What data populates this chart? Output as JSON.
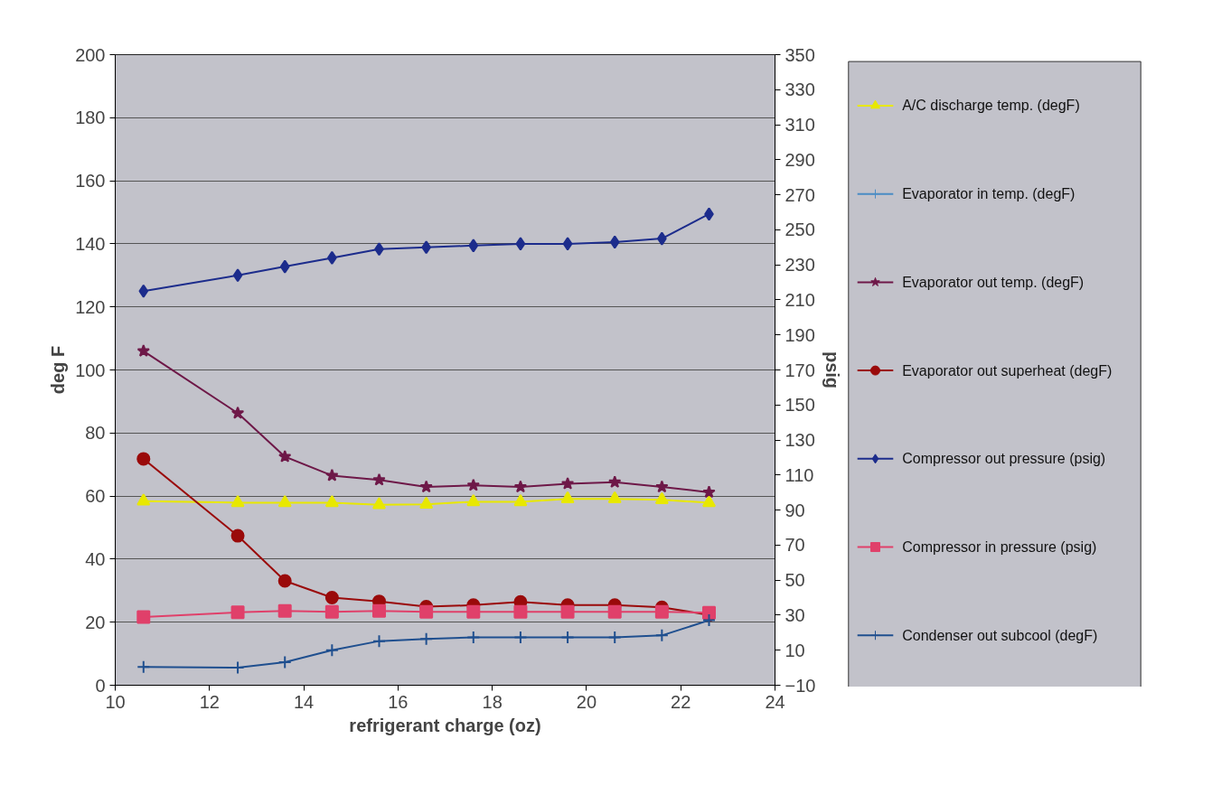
{
  "chart_data": {
    "type": "line",
    "xlabel": "refrigerant charge (oz)",
    "ylabel": "deg F",
    "y2label": "psig",
    "x": [
      10.6,
      12.6,
      13.6,
      14.6,
      15.6,
      16.6,
      17.6,
      18.6,
      19.6,
      20.6,
      21.6,
      22.6
    ],
    "xlim": [
      10,
      24
    ],
    "xticks": [
      10,
      12,
      14,
      16,
      18,
      20,
      22,
      24
    ],
    "ylim": [
      0,
      200
    ],
    "yticks": [
      0,
      20,
      40,
      60,
      80,
      100,
      120,
      140,
      160,
      180,
      200
    ],
    "y2lim": [
      -10,
      350
    ],
    "y2ticks": [
      -10,
      10,
      30,
      50,
      70,
      90,
      110,
      130,
      150,
      170,
      190,
      210,
      230,
      250,
      270,
      290,
      310,
      330,
      350
    ],
    "grid": "y",
    "legend": "right",
    "series": [
      {
        "name": "A/C discharge temp. (degF)",
        "color": "#e8e800",
        "marker": "triangle",
        "values": [
          58.4,
          57.9,
          57.9,
          57.9,
          57.2,
          57.4,
          58.2,
          58.2,
          59.1,
          59.1,
          58.8,
          57.9
        ]
      },
      {
        "name": "Evaporator in temp. (degF)",
        "color": "#4a8cc4",
        "marker": "cross",
        "values": [
          null,
          null,
          null,
          null,
          null,
          null,
          null,
          null,
          null,
          null,
          null,
          null
        ]
      },
      {
        "name": "Evaporator out temp. (degF)",
        "color": "#6e1848",
        "marker": "star",
        "values": [
          106,
          86.3,
          72.5,
          66.5,
          65.1,
          62.9,
          63.4,
          62.9,
          63.9,
          64.4,
          62.9,
          61.2
        ]
      },
      {
        "name": "Evaporator out superheat (degF)",
        "color": "#9a0a0a",
        "marker": "circle",
        "values": [
          71.8,
          47.4,
          33.1,
          27.8,
          26.6,
          24.9,
          25.4,
          26.4,
          25.4,
          25.4,
          24.7,
          22.3
        ]
      },
      {
        "name": "Compressor out pressure (psig)",
        "color": "#1c2c8c",
        "marker": "diamond",
        "axis": "y2",
        "values": [
          215,
          224,
          229,
          234,
          239,
          240,
          241,
          242,
          242,
          243,
          245,
          259
        ]
      },
      {
        "name": "Compressor in pressure (psig)",
        "color": "#e0406a",
        "marker": "square",
        "axis": "y2",
        "values": [
          29,
          31.6,
          32.4,
          31.9,
          32.4,
          31.9,
          31.9,
          31.9,
          31.9,
          31.9,
          31.9,
          31.4
        ]
      },
      {
        "name": "Condenser out subcool (degF)",
        "color": "#1f4f8f",
        "marker": "cross",
        "values": [
          5.8,
          5.6,
          7.3,
          11.1,
          14.0,
          14.7,
          15.2,
          15.2,
          15.2,
          15.2,
          15.8,
          20.6
        ]
      }
    ]
  }
}
